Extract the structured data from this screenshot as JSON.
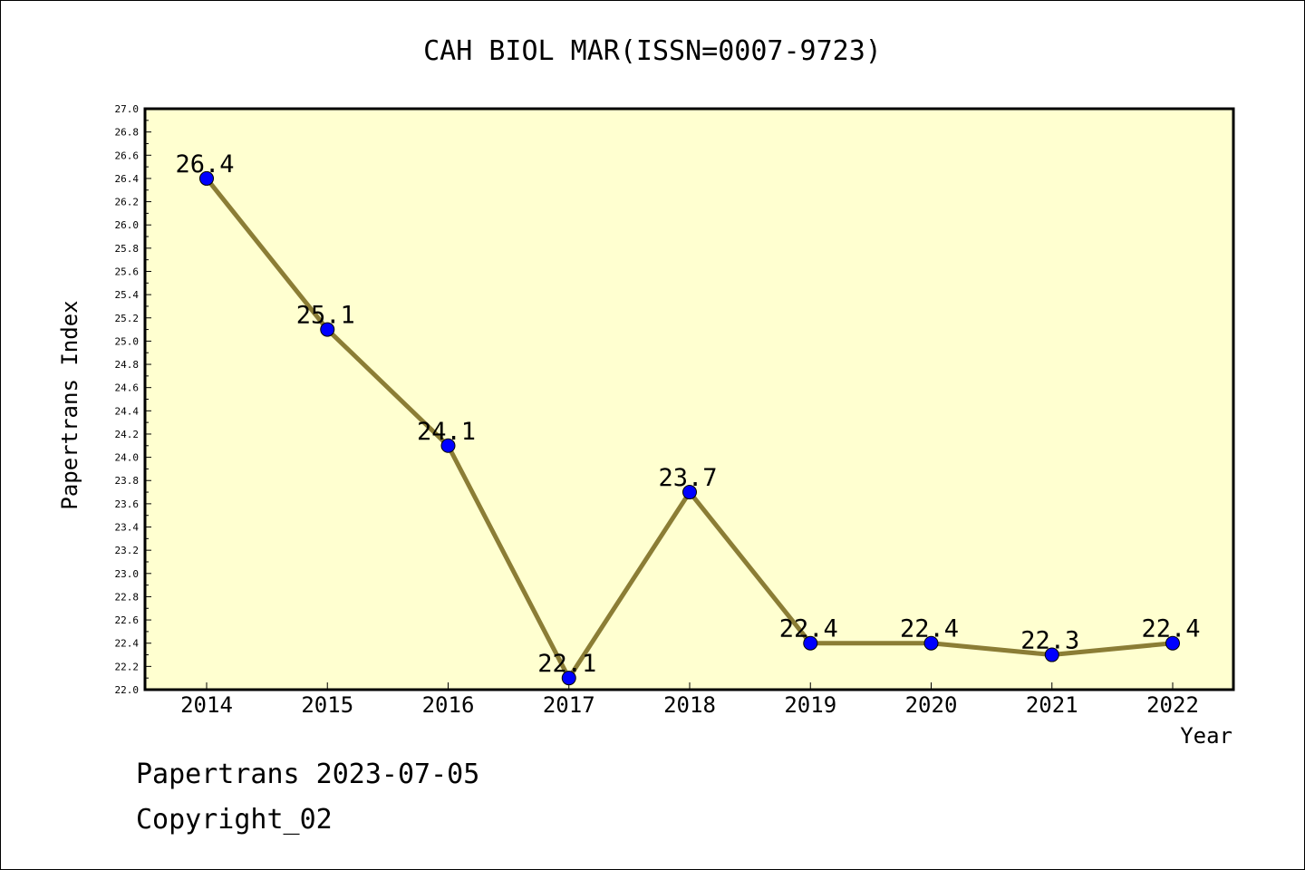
{
  "chart_data": {
    "type": "line",
    "title": "CAH BIOL MAR(ISSN=0007-9723)",
    "xlabel": "Year",
    "ylabel": "Papertrans Index",
    "categories": [
      "2014",
      "2015",
      "2016",
      "2017",
      "2018",
      "2019",
      "2020",
      "2021",
      "2022"
    ],
    "values": [
      26.4,
      25.1,
      24.1,
      22.1,
      23.7,
      22.4,
      22.4,
      22.3,
      22.4
    ],
    "data_labels": [
      "26.4",
      "25.1",
      "24.1",
      "22.1",
      "23.7",
      "22.4",
      "22.4",
      "22.3",
      "22.4"
    ],
    "ylim": [
      22.0,
      27.0
    ],
    "y_ticks": [
      "22.0",
      "22.2",
      "22.4",
      "22.6",
      "22.8",
      "23.0",
      "23.2",
      "23.4",
      "23.6",
      "23.8",
      "24.0",
      "24.2",
      "24.4",
      "24.6",
      "24.8",
      "25.0",
      "25.2",
      "25.4",
      "25.6",
      "25.8",
      "26.0",
      "26.2",
      "26.4",
      "26.6",
      "26.8",
      "27.0"
    ],
    "grid": false,
    "colors": {
      "plot_background": "#ffffd0",
      "line": "#8b7d35",
      "marker": "#0000ff"
    }
  },
  "footer": {
    "line1": "Papertrans 2023-07-05",
    "line2": "Copyright_02"
  }
}
